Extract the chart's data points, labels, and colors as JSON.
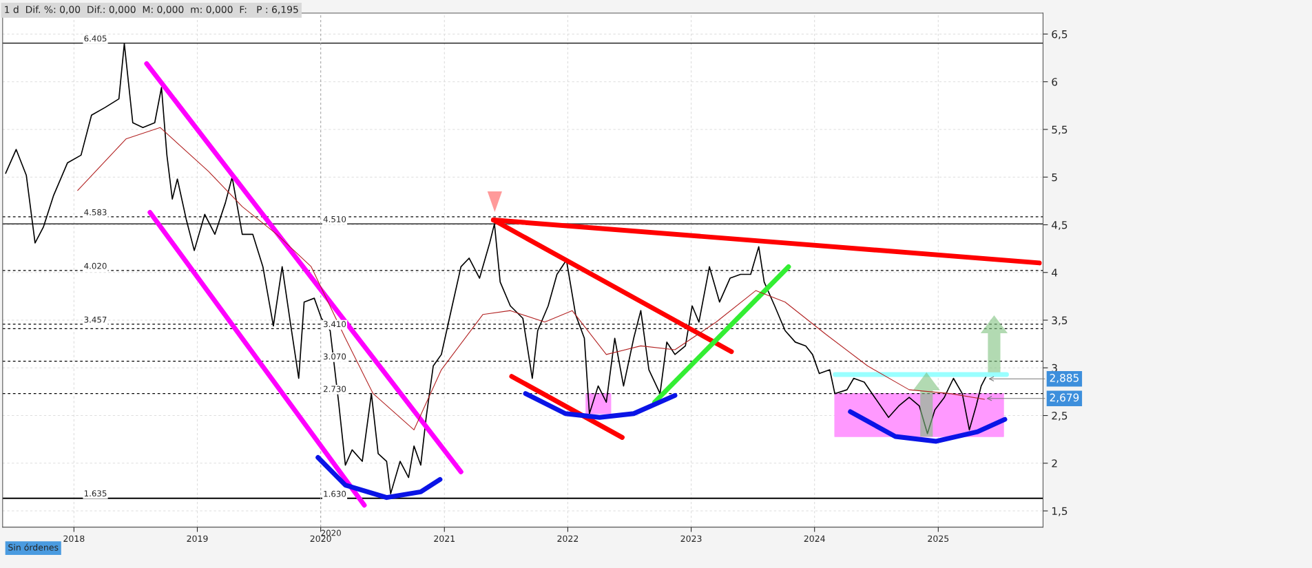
{
  "chart_data": {
    "type": "line",
    "title": "1 d  Dif. %: 0,00  Dif.: 0,000  M: 0,000  m: 0,000  F:   P : 6,195",
    "xlim": [
      "2017-06-04",
      "2025-11-07"
    ],
    "xticks": [
      {
        "value": "2018-01-01",
        "label": "2018"
      },
      {
        "value": "2019-01-01",
        "label": "2019"
      },
      {
        "value": "2020-01-01",
        "label": "2020"
      },
      {
        "value": "2021-01-01",
        "label": "2021"
      },
      {
        "value": "2022-01-01",
        "label": "2022"
      },
      {
        "value": "2023-01-01",
        "label": "2023"
      },
      {
        "value": "2024-01-01",
        "label": "2024"
      },
      {
        "value": "2025-01-01",
        "label": "2025"
      }
    ],
    "ylim": [
      1.33,
      6.72
    ],
    "yticks": [
      {
        "value": 1.5,
        "label": "1,5"
      },
      2,
      {
        "value": 2.5,
        "label": "2,5"
      },
      3,
      {
        "value": 3.5,
        "label": "3,5"
      },
      4,
      {
        "value": 4.5,
        "label": "4,5"
      },
      5,
      {
        "value": 5.5,
        "label": "5,5"
      },
      6,
      {
        "value": 6.5,
        "label": "6,5"
      }
    ],
    "grid": true,
    "series": [
      {
        "color": "#000000",
        "x": [
          "2017-06-13",
          "2017-07-14",
          "2017-08-13",
          "2017-09-08",
          "2017-10-03",
          "2017-11-02",
          "2017-12-13",
          "2018-01-22",
          "2018-02-22",
          "2018-04-03",
          "2018-05-14",
          "2018-05-30",
          "2018-06-24",
          "2018-07-24",
          "2018-08-28",
          "2018-09-17",
          "2018-10-03",
          "2018-10-19",
          "2018-11-03",
          "2018-11-29",
          "2018-12-23",
          "2019-01-23",
          "2019-02-22",
          "2019-03-25",
          "2019-04-14",
          "2019-05-14",
          "2019-06-14",
          "2019-07-14",
          "2019-08-14",
          "2019-09-09",
          "2019-10-03",
          "2019-10-28",
          "2019-11-13",
          "2019-12-13",
          "2020-01-03",
          "2020-01-29",
          "2020-02-23",
          "2020-03-14",
          "2020-04-03",
          "2020-05-03",
          "2020-05-30",
          "2020-06-19",
          "2020-07-14",
          "2020-07-26",
          "2020-08-23",
          "2020-09-17",
          "2020-10-03",
          "2020-10-23",
          "2020-11-08",
          "2020-11-29",
          "2020-12-23",
          "2021-01-24",
          "2021-02-19",
          "2021-03-15",
          "2021-04-15",
          "2021-05-15",
          "2021-05-29",
          "2021-06-15",
          "2021-07-15",
          "2021-08-21",
          "2021-09-18",
          "2021-10-04",
          "2021-11-04",
          "2021-11-30",
          "2021-12-28",
          "2022-01-24",
          "2022-02-19",
          "2022-03-06",
          "2022-04-01",
          "2022-04-25",
          "2022-05-20",
          "2022-06-15",
          "2022-07-15",
          "2022-08-05",
          "2022-08-29",
          "2022-10-01",
          "2022-10-21",
          "2022-11-14",
          "2022-12-15",
          "2023-01-04",
          "2023-01-24",
          "2023-02-24",
          "2023-03-26",
          "2023-04-26",
          "2023-05-27",
          "2023-06-26",
          "2023-07-20",
          "2023-08-05",
          "2023-09-05",
          "2023-10-06",
          "2023-11-05",
          "2023-12-06",
          "2023-12-26",
          "2024-01-15",
          "2024-02-15",
          "2024-03-01",
          "2024-04-06",
          "2024-04-26",
          "2024-05-27",
          "2024-06-27",
          "2024-08-07",
          "2024-09-06",
          "2024-10-07",
          "2024-11-06",
          "2024-11-30",
          "2024-12-22",
          "2025-01-19",
          "2025-02-15",
          "2025-03-13",
          "2025-04-03",
          "2025-04-23",
          "2025-05-08",
          "2025-05-24"
        ],
        "values": [
          5.04,
          5.29,
          5.02,
          4.31,
          4.48,
          4.81,
          5.15,
          5.23,
          5.65,
          5.73,
          5.82,
          6.4,
          5.57,
          5.52,
          5.57,
          5.94,
          5.23,
          4.77,
          4.98,
          4.56,
          4.23,
          4.61,
          4.4,
          4.73,
          5.0,
          4.4,
          4.4,
          4.06,
          3.44,
          4.06,
          3.48,
          2.89,
          3.69,
          3.73,
          3.52,
          3.39,
          2.64,
          1.98,
          2.14,
          2.02,
          2.73,
          2.1,
          2.02,
          1.68,
          2.02,
          1.85,
          2.18,
          1.98,
          2.48,
          3.02,
          3.14,
          3.65,
          4.06,
          4.15,
          3.94,
          4.31,
          4.51,
          3.9,
          3.65,
          3.52,
          2.89,
          3.39,
          3.65,
          3.98,
          4.13,
          3.56,
          3.31,
          2.52,
          2.81,
          2.64,
          3.31,
          2.81,
          3.31,
          3.6,
          2.98,
          2.73,
          3.27,
          3.14,
          3.23,
          3.65,
          3.48,
          4.06,
          3.69,
          3.94,
          3.98,
          3.98,
          4.27,
          3.9,
          3.65,
          3.39,
          3.27,
          3.23,
          3.14,
          2.94,
          2.98,
          2.73,
          2.77,
          2.89,
          2.85,
          2.69,
          2.48,
          2.6,
          2.69,
          2.6,
          2.31,
          2.56,
          2.69,
          2.89,
          2.73,
          2.35,
          2.6,
          2.81,
          2.92
        ]
      },
      {
        "color": "#b22222",
        "x": [
          "2018-01-12",
          "2018-06-04",
          "2018-09-13",
          "2019-02-03",
          "2019-05-14",
          "2019-08-24",
          "2019-12-04",
          "2020-03-14",
          "2020-06-04",
          "2020-10-03",
          "2020-12-23",
          "2021-04-25",
          "2021-07-15",
          "2021-10-25",
          "2022-01-14",
          "2022-04-25",
          "2022-08-05",
          "2022-11-14",
          "2023-03-16",
          "2023-07-11",
          "2023-10-06",
          "2024-02-04",
          "2024-06-06",
          "2024-10-07",
          "2025-02-05",
          "2025-05-18"
        ],
        "values": [
          4.86,
          5.4,
          5.52,
          5.06,
          4.69,
          4.4,
          4.06,
          3.31,
          2.73,
          2.35,
          2.98,
          3.56,
          3.6,
          3.48,
          3.6,
          3.14,
          3.23,
          3.19,
          3.48,
          3.81,
          3.69,
          3.35,
          3.02,
          2.77,
          2.73,
          2.67
        ]
      },
      {
        "type": "line",
        "color": "#ff00ff",
        "x": [
          "2018-08-04",
          "2021-02-19"
        ],
        "values": [
          6.19,
          1.91
        ]
      },
      {
        "type": "line",
        "color": "#ff00ff",
        "x": [
          "2018-08-14",
          "2020-05-09"
        ],
        "values": [
          4.63,
          1.56
        ]
      },
      {
        "type": "line",
        "color": "#ff0000",
        "x": [
          "2021-05-26",
          "2025-10-27"
        ],
        "values": [
          4.55,
          4.1
        ]
      },
      {
        "type": "line",
        "color": "#ff0000",
        "x": [
          "2021-05-26",
          "2023-04-30"
        ],
        "values": [
          4.55,
          3.17
        ]
      },
      {
        "type": "line",
        "color": "#ff0000",
        "x": [
          "2021-07-19",
          "2022-06-11"
        ],
        "values": [
          2.91,
          2.27
        ]
      },
      {
        "type": "line",
        "color": "#33ee33",
        "x": [
          "2022-09-15",
          "2023-10-16"
        ],
        "values": [
          2.64,
          4.06
        ]
      },
      {
        "type": "line",
        "color": "#0a14e6",
        "x": [
          "2019-12-24",
          "2020-03-14",
          "2020-07-14",
          "2020-10-23",
          "2020-12-19"
        ],
        "values": [
          2.06,
          1.77,
          1.64,
          1.7,
          1.83
        ]
      },
      {
        "type": "line",
        "color": "#0a14e6",
        "x": [
          "2021-08-29",
          "2021-12-25",
          "2022-04-05",
          "2022-07-15",
          "2022-11-14"
        ],
        "values": [
          2.73,
          2.52,
          2.48,
          2.52,
          2.71
        ]
      },
      {
        "type": "line",
        "color": "#0a14e6",
        "x": [
          "2024-04-16",
          "2024-08-27",
          "2024-12-26",
          "2025-04-27",
          "2025-07-17"
        ],
        "values": [
          2.54,
          2.28,
          2.23,
          2.33,
          2.46
        ]
      },
      {
        "type": "line",
        "color": "#99ffff",
        "x": [
          "2024-03-02",
          "2025-07-22"
        ],
        "values": [
          2.93,
          2.93
        ]
      },
      {
        "color": "#ff99ff",
        "x": [
          "2024-03-01",
          "2024-06-01",
          "2025-07-13"
        ],
        "values": [
          null,
          null,
          null
        ],
        "lower": [
          2.28,
          2.28,
          2.28
        ],
        "upper": [
          2.73,
          2.73,
          2.73
        ]
      },
      {
        "color": "#ff99ff",
        "x": [
          "2022-02-24",
          "2022-03-20",
          "2022-05-08"
        ],
        "values": [
          null,
          null,
          null
        ],
        "lower": [
          2.52,
          2.52,
          2.52
        ],
        "upper": [
          2.73,
          2.73,
          2.73
        ]
      }
    ],
    "ref_lines": [
      {
        "axis": "y",
        "value": 6.405,
        "label": "6.405",
        "line_style": "solid",
        "color": "#000000"
      },
      {
        "axis": "y",
        "value": 4.583,
        "label": "4.583",
        "line_style": "dashed",
        "color": "#000000"
      },
      {
        "axis": "y",
        "value": 4.02,
        "label": "4.020",
        "line_style": "dashed",
        "color": "#000000"
      },
      {
        "axis": "y",
        "value": 3.457,
        "label": "3.457",
        "line_style": "dashed",
        "color": "#000000"
      },
      {
        "axis": "y",
        "value": 1.635,
        "label": "1.635",
        "line_style": "solid",
        "color": "#000000"
      },
      {
        "axis": "y",
        "value": 4.51,
        "label": "4.510",
        "line_style": "solid",
        "color": "#000000"
      },
      {
        "axis": "y",
        "value": 3.41,
        "label": "3.410",
        "line_style": "dashed",
        "color": "#000000"
      },
      {
        "axis": "y",
        "value": 3.07,
        "label": "3.070",
        "line_style": "dashed",
        "color": "#000000"
      },
      {
        "axis": "y",
        "value": 2.73,
        "label": "2.730",
        "line_style": "dashed",
        "color": "#000000"
      },
      {
        "axis": "y",
        "value": 1.63,
        "label": "1.630",
        "line_style": "solid",
        "color": "#000000"
      },
      {
        "axis": "x",
        "value": "2020-01-01",
        "label": "2020",
        "line_style": "dashed",
        "color": "#aaaaaa"
      }
    ],
    "annotations": [
      {
        "text": "2,885",
        "x": "2025-05-24",
        "y": 2.885
      },
      {
        "text": "2,679",
        "x": "2025-05-18",
        "y": 2.679
      },
      "Sin órdenes"
    ]
  }
}
